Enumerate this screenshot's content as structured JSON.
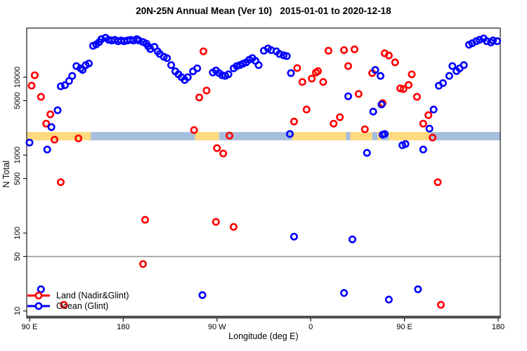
{
  "chart_data": {
    "type": "scatter",
    "title": "20N-25N Annual Mean (Ver 10)   2015-01-01 to 2020-12-18",
    "xlabel": "Longitude (deg E)",
    "ylabel": "N Total",
    "y_scale": "log",
    "x_ticks": {
      "positions_deg": [
        90,
        180,
        270,
        360,
        450,
        540
      ],
      "labels": [
        "90 E",
        "180",
        "90 W",
        "0",
        "90 E",
        "180"
      ]
    },
    "y_ticks": {
      "values": [
        10000,
        5000,
        1000,
        500,
        100,
        50,
        10
      ],
      "labels": [
        "10000",
        "5000",
        "1000",
        "500",
        "100",
        "50",
        "10"
      ]
    },
    "x_range_deg": [
      87,
      543
    ],
    "y_range": [
      8,
      43000
    ],
    "reference_line_n": 50,
    "surface_band": {
      "n_top": 1980,
      "n_bottom": 1550,
      "segments": [
        {
          "from": 87,
          "to": 149,
          "surface": "land"
        },
        {
          "from": 149,
          "to": 249,
          "surface": "ocean"
        },
        {
          "from": 249,
          "to": 272,
          "surface": "land"
        },
        {
          "from": 272,
          "to": 342,
          "surface": "ocean"
        },
        {
          "from": 342,
          "to": 394,
          "surface": "land"
        },
        {
          "from": 394,
          "to": 398,
          "surface": "ocean"
        },
        {
          "from": 398,
          "to": 419,
          "surface": "land"
        },
        {
          "from": 419,
          "to": 424,
          "surface": "ocean"
        },
        {
          "from": 424,
          "to": 428,
          "surface": "land"
        },
        {
          "from": 428,
          "to": 435,
          "surface": "ocean"
        },
        {
          "from": 435,
          "to": 475,
          "surface": "land"
        },
        {
          "from": 475,
          "to": 543,
          "surface": "ocean"
        }
      ]
    },
    "legend": [
      {
        "label": "Land (Nadir&Glint)",
        "color_key": "land"
      },
      {
        "label": "Ocean (Glint)",
        "color_key": "ocean"
      }
    ],
    "colors": {
      "land": "#ff0000",
      "ocean": "#0000ff",
      "band_land": "#ffd97e",
      "band_ocean": "#a6bedd",
      "reference_line": "#969696",
      "axis": "#1a1a1a",
      "baseline": "#4d4d4d"
    },
    "series": [
      {
        "name": "Land (Nadir&Glint)",
        "color_key": "land",
        "points": [
          [
            95,
            10600
          ],
          [
            92,
            7800
          ],
          [
            101,
            5600
          ],
          [
            110,
            3340
          ],
          [
            106,
            2540
          ],
          [
            114,
            1580
          ],
          [
            137,
            1640
          ],
          [
            120,
            450
          ],
          [
            257,
            21500
          ],
          [
            260,
            6750
          ],
          [
            253,
            5500
          ],
          [
            248,
            2100
          ],
          [
            282,
            1780
          ],
          [
            270,
            1230
          ],
          [
            276,
            1050
          ],
          [
            201,
            148
          ],
          [
            269,
            139
          ],
          [
            286,
            120
          ],
          [
            199,
            40
          ],
          [
            123,
            12
          ],
          [
            347,
            13100
          ],
          [
            352,
            8700
          ],
          [
            361,
            9600
          ],
          [
            365,
            11500
          ],
          [
            367,
            12000
          ],
          [
            372,
            8700
          ],
          [
            377,
            21900
          ],
          [
            392,
            22300
          ],
          [
            402,
            22800
          ],
          [
            396,
            13900
          ],
          [
            406,
            6100
          ],
          [
            356,
            3850
          ],
          [
            382,
            2540
          ],
          [
            388,
            3070
          ],
          [
            344,
            2700
          ],
          [
            412,
            2150
          ],
          [
            419,
            11300
          ],
          [
            431,
            20300
          ],
          [
            435,
            19000
          ],
          [
            441,
            15500
          ],
          [
            446,
            7200
          ],
          [
            457,
            10900
          ],
          [
            454,
            7950
          ],
          [
            449,
            7050
          ],
          [
            462,
            5600
          ],
          [
            429,
            4650
          ],
          [
            473,
            3260
          ],
          [
            468,
            2540
          ],
          [
            477,
            1680
          ],
          [
            482,
            450
          ],
          [
            485,
            12
          ]
        ]
      },
      {
        "name": "Ocean (Glint)",
        "color_key": "ocean",
        "points": [
          [
            117,
            3770
          ],
          [
            111,
            2290
          ],
          [
            90,
            1450
          ],
          [
            107,
            1180
          ],
          [
            120,
            7640
          ],
          [
            124,
            7900
          ],
          [
            128,
            8960
          ],
          [
            131,
            10400
          ],
          [
            135,
            13900
          ],
          [
            139,
            13000
          ],
          [
            141,
            12400
          ],
          [
            144,
            14300
          ],
          [
            147,
            15000
          ],
          [
            151,
            25300
          ],
          [
            154,
            26400
          ],
          [
            157,
            28300
          ],
          [
            159,
            30800
          ],
          [
            163,
            32100
          ],
          [
            166,
            30200
          ],
          [
            169,
            29600
          ],
          [
            172,
            30200
          ],
          [
            175,
            29000
          ],
          [
            178,
            29600
          ],
          [
            181,
            29000
          ],
          [
            184,
            29600
          ],
          [
            187,
            30200
          ],
          [
            190,
            29600
          ],
          [
            193,
            30800
          ],
          [
            195,
            29600
          ],
          [
            199,
            28300
          ],
          [
            202,
            27100
          ],
          [
            204,
            24900
          ],
          [
            206,
            23000
          ],
          [
            210,
            24500
          ],
          [
            213,
            21500
          ],
          [
            215,
            19900
          ],
          [
            219,
            18300
          ],
          [
            222,
            17600
          ],
          [
            226,
            14300
          ],
          [
            230,
            11900
          ],
          [
            233,
            10900
          ],
          [
            236,
            10000
          ],
          [
            239,
            9200
          ],
          [
            242,
            10000
          ],
          [
            247,
            11900
          ],
          [
            251,
            13000
          ],
          [
            266,
            11500
          ],
          [
            269,
            12200
          ],
          [
            272,
            11300
          ],
          [
            275,
            10600
          ],
          [
            278,
            10400
          ],
          [
            281,
            10900
          ],
          [
            286,
            13000
          ],
          [
            289,
            13900
          ],
          [
            292,
            14300
          ],
          [
            295,
            14900
          ],
          [
            298,
            15500
          ],
          [
            301,
            16800
          ],
          [
            304,
            17600
          ],
          [
            307,
            16200
          ],
          [
            310,
            14300
          ],
          [
            315,
            21900
          ],
          [
            319,
            23400
          ],
          [
            322,
            22300
          ],
          [
            327,
            21500
          ],
          [
            330,
            19900
          ],
          [
            334,
            19100
          ],
          [
            337,
            18700
          ],
          [
            341,
            11300
          ],
          [
            340,
            1870
          ],
          [
            396,
            5700
          ],
          [
            420,
            3620
          ],
          [
            428,
            4470
          ],
          [
            422,
            12400
          ],
          [
            427,
            10400
          ],
          [
            429,
            1830
          ],
          [
            414,
            1070
          ],
          [
            431,
            1870
          ],
          [
            448,
            1340
          ],
          [
            451,
            1390
          ],
          [
            468,
            1180
          ],
          [
            478,
            3850
          ],
          [
            474,
            2190
          ],
          [
            483,
            7770
          ],
          [
            487,
            8400
          ],
          [
            493,
            10400
          ],
          [
            496,
            13900
          ],
          [
            500,
            12000
          ],
          [
            503,
            13000
          ],
          [
            507,
            14300
          ],
          [
            512,
            26100
          ],
          [
            515,
            27300
          ],
          [
            519,
            29000
          ],
          [
            522,
            30200
          ],
          [
            526,
            31500
          ],
          [
            529,
            29000
          ],
          [
            533,
            27900
          ],
          [
            535,
            29600
          ],
          [
            539,
            29000
          ],
          [
            344,
            90
          ],
          [
            400,
            83
          ],
          [
            392,
            17
          ],
          [
            435,
            14
          ],
          [
            463,
            19
          ],
          [
            256,
            16
          ],
          [
            101,
            19
          ]
        ]
      }
    ]
  }
}
